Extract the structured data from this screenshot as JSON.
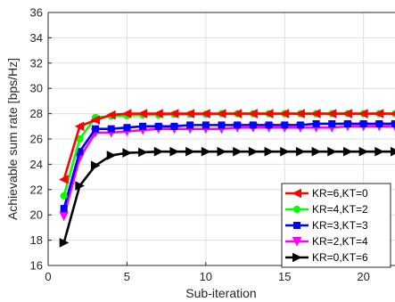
{
  "chart_data": {
    "type": "line",
    "title": "",
    "xlabel": "Sub-iteration",
    "ylabel": "Achievable sum rate [bps/Hz]",
    "xlim": [
      0,
      22
    ],
    "ylim": [
      16,
      36
    ],
    "xticks": [
      0,
      5,
      10,
      15,
      20
    ],
    "yticks": [
      16,
      18,
      20,
      22,
      24,
      26,
      28,
      30,
      32,
      34,
      36
    ],
    "grid": true,
    "legend_position": "bottom-right",
    "x": [
      1,
      2,
      3,
      4,
      5,
      6,
      7,
      8,
      9,
      10,
      11,
      12,
      13,
      14,
      15,
      16,
      17,
      18,
      19,
      20,
      21,
      22
    ],
    "series": [
      {
        "name": "KR=6,KT=0",
        "color": "#ff0000",
        "marker": "triangle-left",
        "values": [
          22.8,
          27.0,
          27.5,
          27.9,
          28.0,
          28.0,
          28.0,
          28.0,
          28.0,
          28.0,
          28.0,
          28.0,
          28.0,
          28.0,
          28.0,
          28.0,
          28.0,
          28.0,
          28.0,
          28.0,
          28.0,
          28.0
        ]
      },
      {
        "name": "KR=4,KT=2",
        "color": "#00ff00",
        "marker": "circle",
        "values": [
          21.5,
          26.0,
          27.7,
          27.8,
          27.85,
          27.9,
          27.9,
          27.95,
          27.95,
          27.95,
          28.0,
          28.0,
          28.0,
          28.0,
          28.0,
          28.0,
          28.0,
          28.0,
          28.0,
          28.0,
          28.0,
          28.0
        ]
      },
      {
        "name": "KR=3,KT=3",
        "color": "#0000ff",
        "marker": "square",
        "values": [
          20.5,
          25.0,
          26.8,
          26.8,
          26.9,
          27.0,
          27.0,
          27.0,
          27.1,
          27.1,
          27.1,
          27.1,
          27.1,
          27.1,
          27.1,
          27.1,
          27.2,
          27.2,
          27.2,
          27.2,
          27.2,
          27.2
        ]
      },
      {
        "name": "KR=2,KT=4",
        "color": "#ff00ff",
        "marker": "triangle-down",
        "values": [
          19.9,
          24.5,
          26.5,
          26.5,
          26.6,
          26.7,
          26.8,
          26.8,
          26.8,
          26.8,
          26.8,
          26.9,
          26.9,
          26.9,
          26.9,
          26.9,
          26.9,
          26.9,
          27.0,
          27.0,
          27.0,
          27.0
        ]
      },
      {
        "name": "KR=0,KT=6",
        "color": "#000000",
        "marker": "triangle-right",
        "values": [
          17.8,
          22.3,
          23.9,
          24.7,
          24.9,
          24.95,
          25.0,
          25.0,
          25.0,
          25.0,
          25.0,
          25.0,
          25.0,
          25.0,
          25.0,
          25.0,
          25.0,
          25.0,
          25.0,
          25.0,
          25.0,
          25.0
        ]
      }
    ]
  }
}
